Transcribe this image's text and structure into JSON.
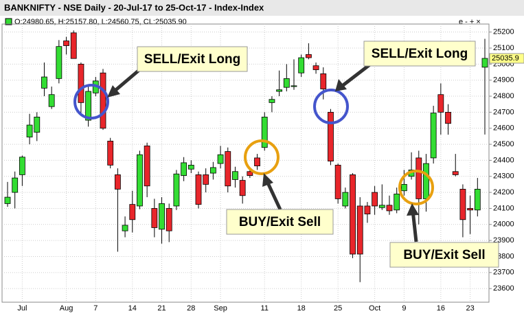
{
  "chart_data": {
    "type": "candlestick",
    "title": "BANKNIFTY - NSE Daily - 20-Jul-17 to 25-Oct-17 - Index-Index",
    "ohlc_readout": "O:24980.65, H:25157.80, L:24560.75, CL:25035.90",
    "controls": "e - + ×",
    "categories": [
      null,
      null,
      "Jul",
      null,
      null,
      null,
      null,
      null,
      "Aug",
      null,
      null,
      null,
      "7",
      null,
      null,
      null,
      null,
      "14",
      null,
      null,
      null,
      "21",
      null,
      null,
      null,
      "28",
      null,
      null,
      null,
      "Sep",
      null,
      null,
      null,
      null,
      null,
      "11",
      null,
      null,
      null,
      null,
      "18",
      null,
      null,
      null,
      null,
      "25",
      null,
      null,
      null,
      null,
      "Oct",
      null,
      null,
      null,
      "9",
      null,
      null,
      null,
      null,
      "16",
      null,
      null,
      null,
      "23",
      null,
      null
    ],
    "series": [
      {
        "up_color": "#33dd33",
        "down_color": "#e8262b",
        "open": [
          24130,
          24200,
          24310,
          24545,
          24575,
          24850,
          24735,
          24910,
          25145,
          25195,
          25000,
          24650,
          24820,
          24945,
          24520,
          24310,
          23960,
          24125,
          24115,
          24490,
          24100,
          23970,
          24100,
          24115,
          24305,
          24345,
          24310,
          24310,
          24320,
          24380,
          24455,
          24280,
          24275,
          24330,
          24415,
          24480,
          24760,
          24830,
          24855,
          24860,
          24945,
          25060,
          24990,
          24940,
          24700,
          24370,
          24115,
          24310,
          24115,
          24115,
          24200,
          24105,
          24120,
          24090,
          24210,
          24300,
          24415,
          24160,
          24415,
          24810,
          24700,
          24330,
          24220,
          24100,
          24090,
          24980.65
        ],
        "high": [
          24265,
          24330,
          24430,
          24690,
          24700,
          25010,
          24860,
          25150,
          25170,
          25210,
          25010,
          24870,
          24920,
          24970,
          24540,
          24350,
          24050,
          24210,
          24460,
          24510,
          24160,
          24170,
          24130,
          24340,
          24420,
          24400,
          24330,
          24350,
          24390,
          24490,
          24480,
          24360,
          24300,
          24345,
          24440,
          24700,
          24800,
          24960,
          25000,
          25030,
          25060,
          25130,
          25010,
          24980,
          24720,
          24380,
          24230,
          24320,
          24170,
          24140,
          24240,
          24250,
          24180,
          24230,
          24340,
          24450,
          24460,
          24440,
          24740,
          24880,
          24750,
          24440,
          24250,
          24180,
          24290,
          25157.8
        ],
        "low": [
          24110,
          24100,
          24240,
          24500,
          24520,
          24800,
          24720,
          24880,
          25060,
          25035,
          24690,
          24610,
          24800,
          24590,
          24350,
          23830,
          23920,
          23950,
          24095,
          24170,
          23920,
          23880,
          23890,
          24090,
          24270,
          24320,
          24100,
          24200,
          24280,
          24350,
          24200,
          24230,
          24130,
          24290,
          24340,
          24460,
          24700,
          24800,
          24830,
          24840,
          24920,
          25030,
          24940,
          24780,
          24370,
          24130,
          24100,
          23790,
          23640,
          24010,
          24060,
          24090,
          24060,
          24070,
          24180,
          24280,
          24000,
          24080,
          24380,
          24560,
          24560,
          24300,
          23920,
          23940,
          24050,
          24560.75
        ],
        "close": [
          24170,
          24290,
          24420,
          24620,
          24670,
          24920,
          24810,
          25110,
          25115,
          25035,
          24760,
          24830,
          24895,
          24600,
          24370,
          24220,
          23995,
          24030,
          24435,
          24240,
          23980,
          24130,
          23960,
          24315,
          24385,
          24370,
          24125,
          24250,
          24355,
          24435,
          24240,
          24330,
          24180,
          24305,
          24365,
          24670,
          24780,
          24840,
          24910,
          24865,
          25040,
          25040,
          24965,
          24845,
          24395,
          24160,
          24200,
          23815,
          23815,
          24065,
          24115,
          24120,
          24085,
          24190,
          24250,
          24340,
          24160,
          24380,
          24695,
          24700,
          24630,
          24310,
          24030,
          24090,
          24220,
          25035.9
        ]
      }
    ],
    "price_marker": {
      "value": 25035.9,
      "label": "25035.9"
    },
    "ylim": [
      23515,
      25250
    ],
    "yticks": [
      23600,
      23700,
      23800,
      23900,
      24000,
      24100,
      24200,
      24300,
      24400,
      24500,
      24600,
      24700,
      24800,
      24900,
      25000,
      25100,
      25200
    ],
    "grid": true,
    "annotations": [
      {
        "text": "SELL/Exit Long"
      },
      {
        "text": "SELL/Exit Long"
      },
      {
        "text": "BUY/Exit Sell"
      },
      {
        "text": "BUY/Exit Sell"
      }
    ]
  }
}
